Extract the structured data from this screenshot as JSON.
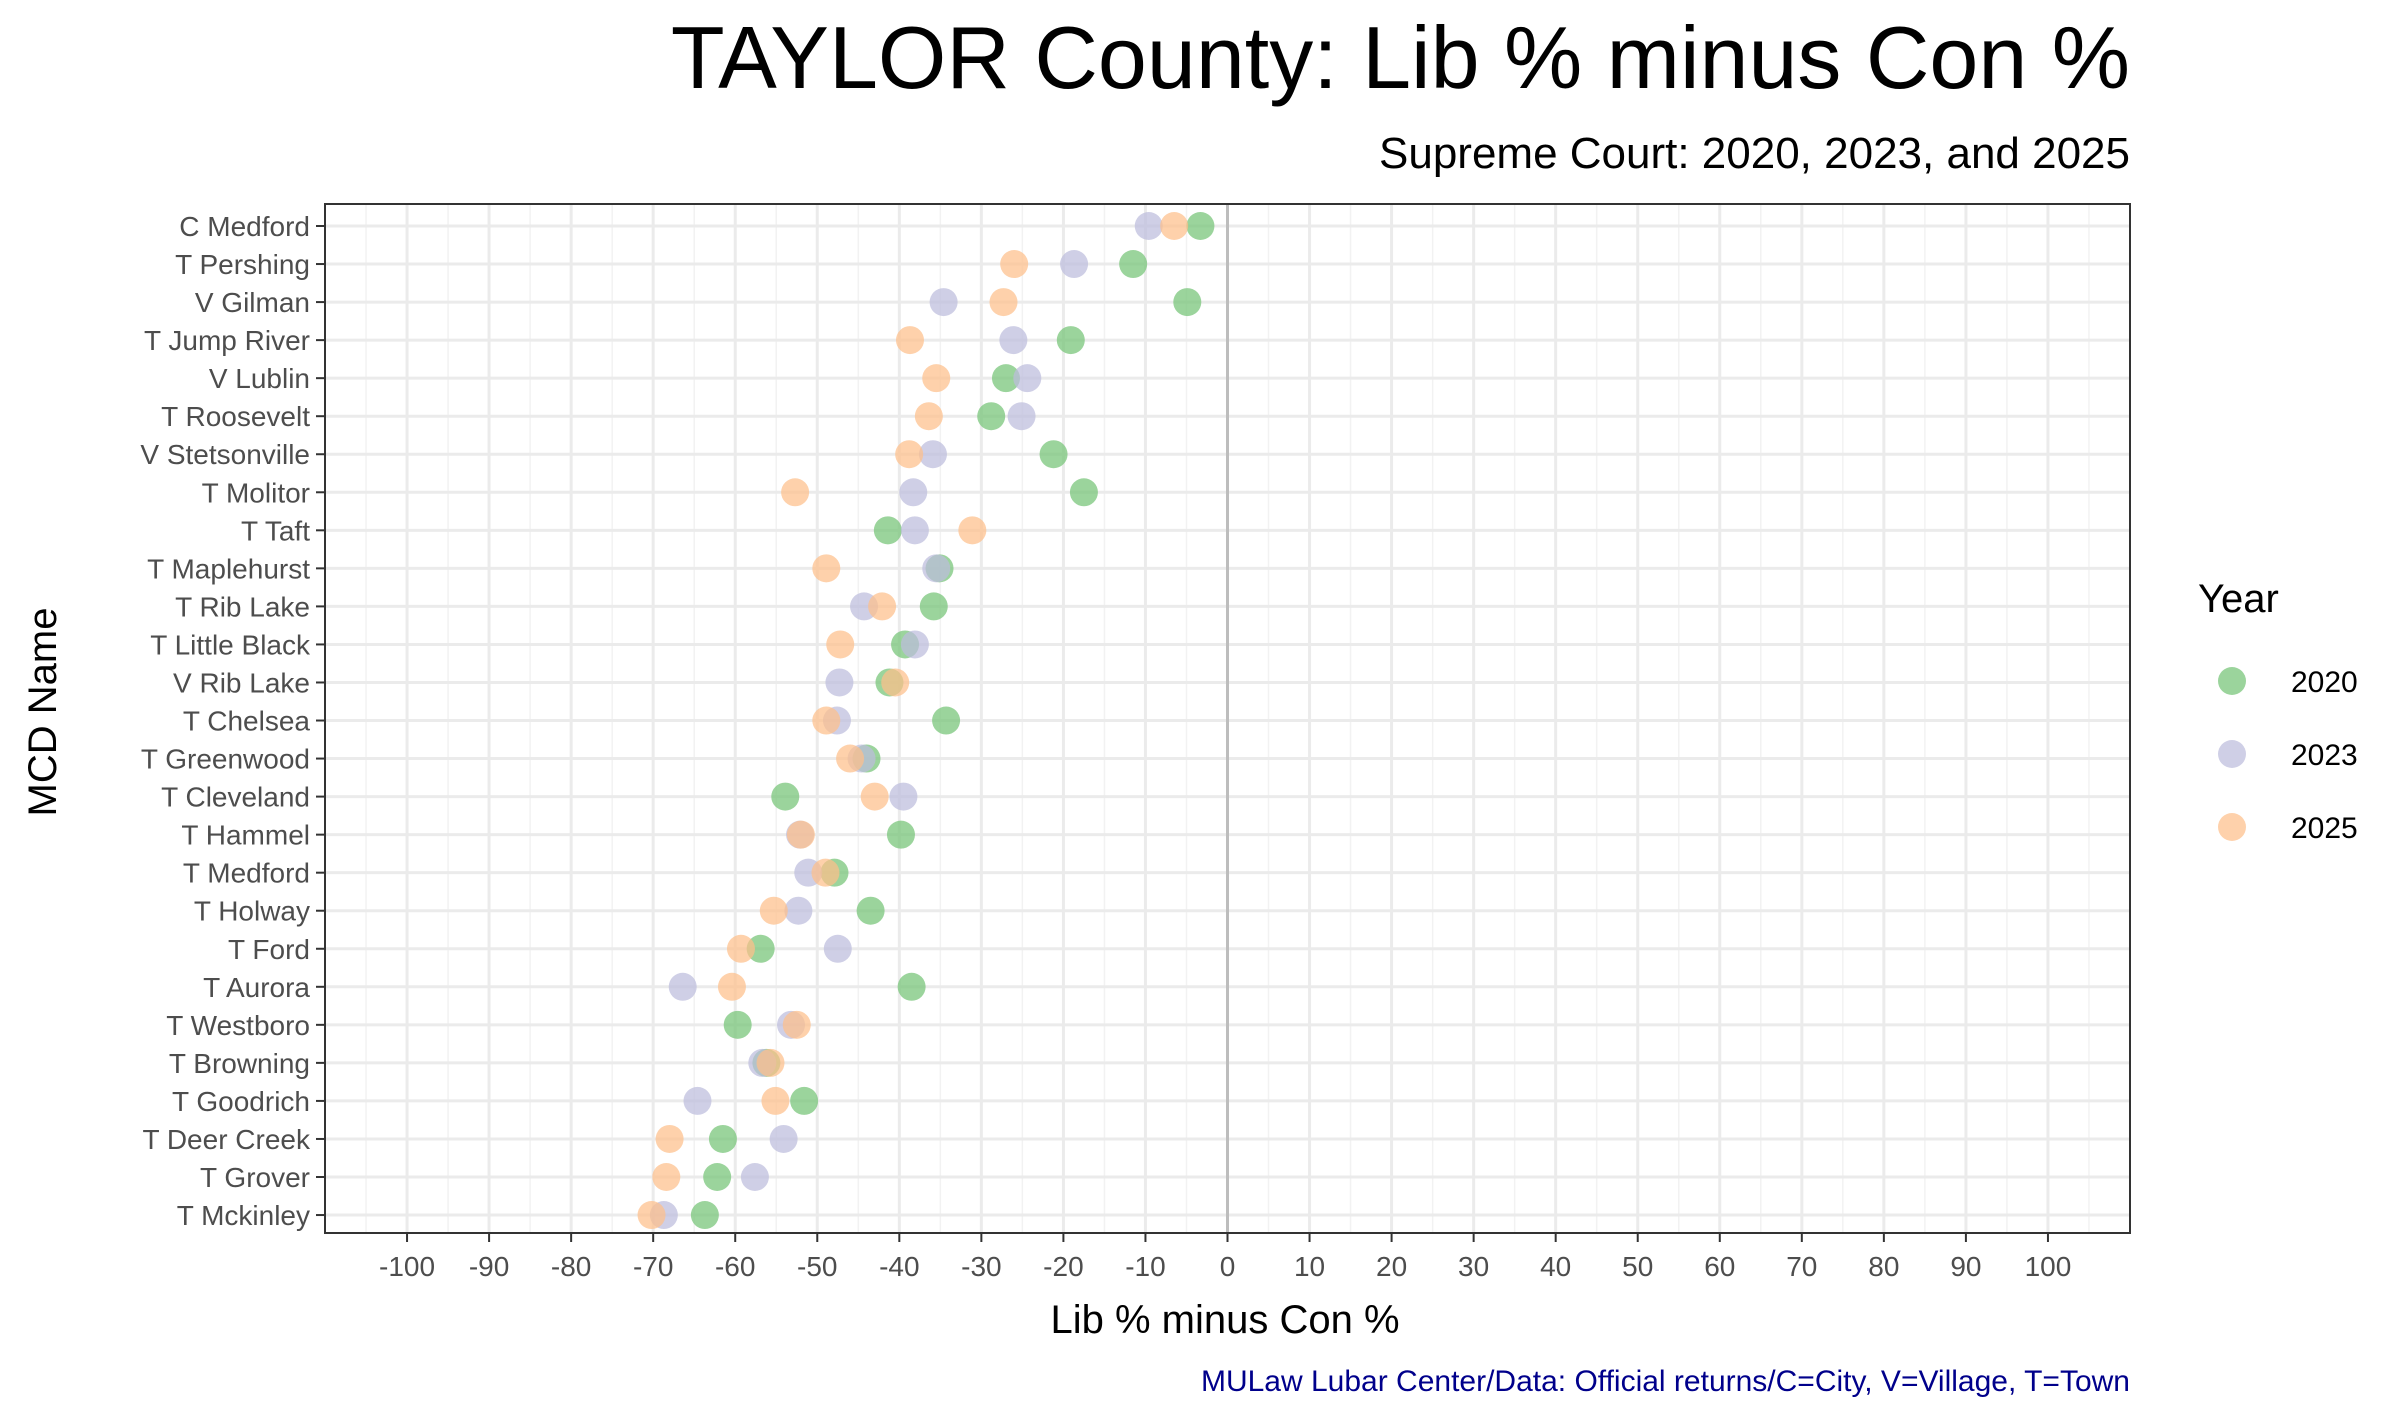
{
  "chart_data": {
    "type": "scatter",
    "title": "TAYLOR County: Lib % minus Con %",
    "subtitle": "Supreme Court: 2020, 2023, and 2025",
    "xlabel": "Lib % minus Con %",
    "ylabel": "MCD Name",
    "caption": "MULaw Lubar Center/Data: Official returns/C=City, V=Village, T=Town",
    "xlim": [
      -110,
      110
    ],
    "xticks": [
      -100,
      -90,
      -80,
      -70,
      -60,
      -50,
      -40,
      -30,
      -20,
      -10,
      0,
      10,
      20,
      30,
      40,
      50,
      60,
      70,
      80,
      90,
      100
    ],
    "xtick_labels": [
      "-100",
      "-90",
      "-80",
      "-70",
      "-60",
      "-50",
      "-40",
      "-30",
      "-20",
      "-10",
      "0",
      "10",
      "20",
      "30",
      "40",
      "50",
      "60",
      "70",
      "80",
      "90",
      "100"
    ],
    "grid": true,
    "zero_line": true,
    "legend": {
      "title": "Year",
      "position": "right"
    },
    "categories": [
      "C Medford",
      "T Pershing",
      "V Gilman",
      "T Jump River",
      "V Lublin",
      "T Roosevelt",
      "V Stetsonville",
      "T Molitor",
      "T Taft",
      "T Maplehurst",
      "T Rib Lake",
      "T Little Black",
      "V Rib Lake",
      "T Chelsea",
      "T Greenwood",
      "T Cleveland",
      "T Hammel",
      "T Medford",
      "T Holway",
      "T Ford",
      "T Aurora",
      "T Westboro",
      "T Browning",
      "T Goodrich",
      "T Deer Creek",
      "T Grover",
      "T Mckinley"
    ],
    "series": [
      {
        "name": "2020",
        "color": "#74c476",
        "values": [
          -3.3,
          -11.5,
          -4.9,
          -19.1,
          -27.0,
          -28.8,
          -21.2,
          -17.5,
          -41.4,
          -35.1,
          -35.8,
          -39.3,
          -41.2,
          -34.3,
          -44.0,
          -53.9,
          -39.8,
          -47.9,
          -43.5,
          -56.9,
          -38.5,
          -59.7,
          -56.2,
          -51.6,
          -61.5,
          -62.2,
          -63.7
        ]
      },
      {
        "name": "2023",
        "color": "#bcbddc",
        "values": [
          -9.6,
          -18.7,
          -34.6,
          -26.1,
          -24.4,
          -25.1,
          -35.9,
          -38.3,
          -38.1,
          -35.5,
          -44.3,
          -38.1,
          -47.3,
          -47.6,
          -44.6,
          -39.5,
          -52.1,
          -51.1,
          -52.3,
          -47.5,
          -66.4,
          -53.2,
          -56.7,
          -64.6,
          -54.1,
          -57.6,
          -68.7
        ]
      },
      {
        "name": "2025",
        "color": "#fdbf8a",
        "values": [
          -6.5,
          -26.0,
          -27.3,
          -38.7,
          -35.5,
          -36.4,
          -38.8,
          -52.7,
          -31.1,
          -48.9,
          -42.1,
          -47.2,
          -40.5,
          -48.9,
          -46.0,
          -43.0,
          -52.0,
          -49.0,
          -55.3,
          -59.3,
          -60.4,
          -52.5,
          -55.7,
          -55.1,
          -68.0,
          -68.4,
          -70.2
        ]
      }
    ]
  }
}
